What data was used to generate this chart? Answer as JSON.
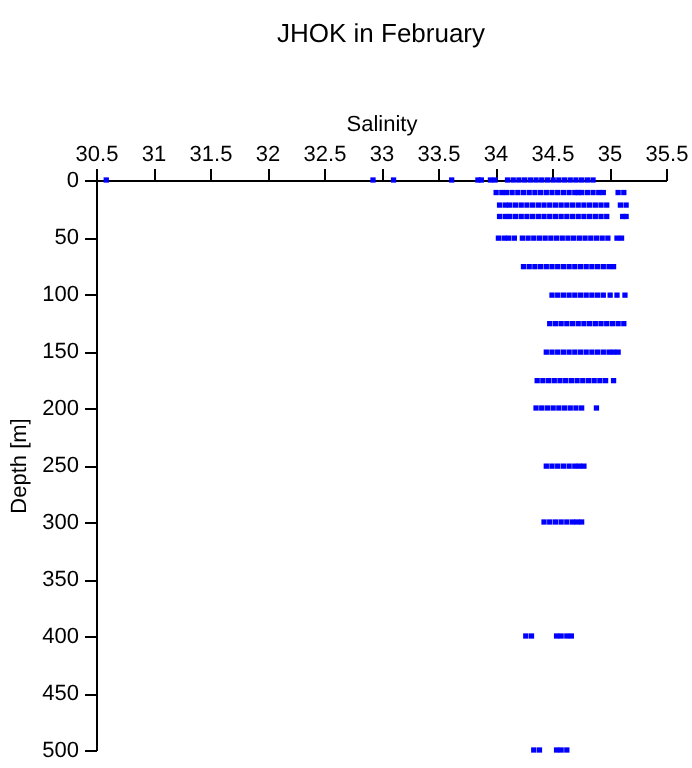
{
  "chart_data": {
    "type": "scatter",
    "title": "JHOK in February",
    "xlabel": "Salinity",
    "ylabel": "Depth [m]",
    "xlim": [
      30.5,
      35.5
    ],
    "xticks": [
      30.5,
      31,
      31.5,
      32,
      32.5,
      33,
      33.5,
      34,
      34.5,
      35,
      35.5
    ],
    "ylim": [
      500,
      0
    ],
    "yticks": [
      0,
      50,
      100,
      150,
      200,
      250,
      300,
      350,
      400,
      450,
      500
    ],
    "marker": "square",
    "grid": false,
    "legend": false,
    "series": [
      {
        "color": "#0000ff",
        "x": [
          30.59,
          32.93,
          33.11,
          33.62,
          33.85,
          33.88,
          33.96,
          34.0,
          34.11,
          34.16,
          34.21,
          34.26,
          34.31,
          34.36,
          34.41,
          34.46,
          34.51,
          34.56,
          34.61,
          34.66,
          34.71,
          34.76,
          34.81,
          34.86
        ],
        "values": [
          0,
          0,
          0,
          0,
          0,
          0,
          0,
          0,
          0,
          0,
          0,
          0,
          0,
          0,
          0,
          0,
          0,
          0,
          0,
          0,
          0,
          0,
          0,
          0
        ]
      },
      {
        "color": "#0000ff",
        "x": [
          34.01,
          34.06,
          34.1,
          34.15,
          34.2,
          34.25,
          34.3,
          34.35,
          34.4,
          34.45,
          34.5,
          34.55,
          34.6,
          34.65,
          34.7,
          34.73,
          34.76,
          34.81,
          34.86,
          34.91,
          34.95,
          35.08,
          35.13
        ],
        "values": [
          11,
          11,
          11,
          11,
          11,
          11,
          11,
          11,
          11,
          11,
          11,
          11,
          11,
          11,
          11,
          11,
          11,
          11,
          11,
          11,
          11,
          11,
          11
        ]
      },
      {
        "color": "#0000ff",
        "x": [
          34.04,
          34.09,
          34.13,
          34.18,
          34.23,
          34.28,
          34.33,
          34.38,
          34.43,
          34.48,
          34.53,
          34.58,
          34.63,
          34.68,
          34.73,
          34.78,
          34.83,
          34.88,
          34.93,
          34.98,
          35.1,
          35.15
        ],
        "values": [
          22,
          22,
          22,
          22,
          22,
          22,
          22,
          22,
          22,
          22,
          22,
          22,
          22,
          22,
          22,
          22,
          22,
          22,
          22,
          22,
          22,
          22
        ]
      },
      {
        "color": "#0000ff",
        "x": [
          34.04,
          34.09,
          34.13,
          34.18,
          34.23,
          34.28,
          34.33,
          34.38,
          34.43,
          34.48,
          34.53,
          34.58,
          34.63,
          34.68,
          34.73,
          34.78,
          34.83,
          34.88,
          34.93,
          34.98,
          35.12,
          35.15
        ],
        "values": [
          32,
          32,
          32,
          32,
          32,
          32,
          32,
          32,
          32,
          32,
          32,
          32,
          32,
          32,
          32,
          32,
          32,
          32,
          32,
          32,
          32,
          32
        ]
      },
      {
        "color": "#0000ff",
        "x": [
          34.03,
          34.08,
          34.12,
          34.17,
          34.24,
          34.29,
          34.34,
          34.39,
          34.44,
          34.49,
          34.54,
          34.59,
          34.64,
          34.69,
          34.74,
          34.79,
          34.84,
          34.89,
          34.94,
          34.99,
          35.07,
          35.11
        ],
        "values": [
          51,
          51,
          51,
          51,
          51,
          51,
          51,
          51,
          51,
          51,
          51,
          51,
          51,
          51,
          51,
          51,
          51,
          51,
          51,
          51,
          51,
          51
        ]
      },
      {
        "color": "#0000ff",
        "x": [
          34.25,
          34.3,
          34.35,
          34.4,
          34.45,
          34.5,
          34.55,
          34.6,
          34.65,
          34.7,
          34.75,
          34.8,
          34.85,
          34.9,
          34.95,
          35.0,
          35.04
        ],
        "values": [
          76,
          76,
          76,
          76,
          76,
          76,
          76,
          76,
          76,
          76,
          76,
          76,
          76,
          76,
          76,
          76,
          76
        ]
      },
      {
        "color": "#0000ff",
        "x": [
          34.5,
          34.55,
          34.6,
          34.65,
          34.7,
          34.75,
          34.8,
          34.85,
          34.9,
          34.95,
          35.01,
          35.07,
          35.14
        ],
        "values": [
          101,
          101,
          101,
          101,
          101,
          101,
          101,
          101,
          101,
          101,
          101,
          101,
          101
        ]
      },
      {
        "color": "#0000ff",
        "x": [
          34.48,
          34.53,
          34.58,
          34.63,
          34.68,
          34.73,
          34.78,
          34.83,
          34.88,
          34.93,
          34.98,
          35.03,
          35.08,
          35.13
        ],
        "values": [
          126,
          126,
          126,
          126,
          126,
          126,
          126,
          126,
          126,
          126,
          126,
          126,
          126,
          126
        ]
      },
      {
        "color": "#0000ff",
        "x": [
          34.45,
          34.5,
          34.55,
          34.6,
          34.65,
          34.7,
          34.75,
          34.8,
          34.85,
          34.9,
          34.95,
          35.0,
          35.04,
          35.08
        ],
        "values": [
          151,
          151,
          151,
          151,
          151,
          151,
          151,
          151,
          151,
          151,
          151,
          151,
          151,
          151
        ]
      },
      {
        "color": "#0000ff",
        "x": [
          34.37,
          34.42,
          34.47,
          34.52,
          34.57,
          34.62,
          34.67,
          34.72,
          34.77,
          34.82,
          34.87,
          34.92,
          34.97,
          35.04
        ],
        "values": [
          176,
          176,
          176,
          176,
          176,
          176,
          176,
          176,
          176,
          176,
          176,
          176,
          176,
          176
        ]
      },
      {
        "color": "#0000ff",
        "x": [
          34.36,
          34.41,
          34.46,
          34.51,
          34.56,
          34.61,
          34.66,
          34.71,
          34.76,
          34.89
        ],
        "values": [
          200,
          200,
          200,
          200,
          200,
          200,
          200,
          200,
          200,
          200
        ]
      },
      {
        "color": "#0000ff",
        "x": [
          34.45,
          34.5,
          34.55,
          34.6,
          34.65,
          34.7,
          34.74,
          34.78
        ],
        "values": [
          251,
          251,
          251,
          251,
          251,
          251,
          251,
          251
        ]
      },
      {
        "color": "#0000ff",
        "x": [
          34.43,
          34.48,
          34.53,
          34.58,
          34.63,
          34.68,
          34.72,
          34.76
        ],
        "values": [
          300,
          300,
          300,
          300,
          300,
          300,
          300,
          300
        ]
      },
      {
        "color": "#0000ff",
        "x": [
          34.27,
          34.32,
          34.54,
          34.58,
          34.63,
          34.67
        ],
        "values": [
          400,
          400,
          400,
          400,
          400,
          400
        ]
      },
      {
        "color": "#0000ff",
        "x": [
          34.34,
          34.39,
          34.54,
          34.58,
          34.63
        ],
        "values": [
          500,
          500,
          500,
          500,
          500
        ]
      }
    ]
  }
}
